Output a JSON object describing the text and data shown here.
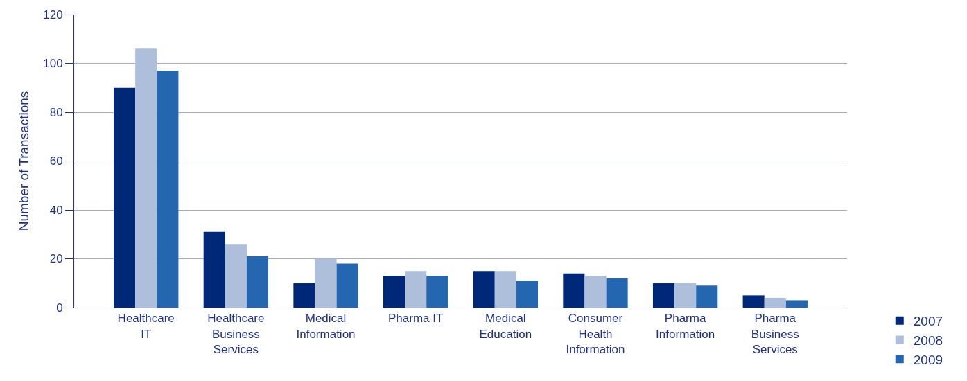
{
  "chart_data": {
    "type": "bar",
    "ylabel": "Number of Transactions",
    "categories": [
      "Healthcare\nIT",
      "Healthcare\nBusiness\nServices",
      "Medical\nInformation",
      "Pharma IT",
      "Medical\nEducation",
      "Consumer\nHealth\nInformation",
      "Pharma\nInformation",
      "Pharma\nBusiness\nServices"
    ],
    "series": [
      {
        "name": "2007",
        "color": "#002878",
        "values": [
          90,
          31,
          10,
          13,
          15,
          14,
          10,
          5
        ]
      },
      {
        "name": "2008",
        "color": "#adbfdb",
        "values": [
          106,
          26,
          20,
          15,
          15,
          13,
          10,
          4
        ]
      },
      {
        "name": "2009",
        "color": "#2467b0",
        "values": [
          97,
          21,
          18,
          13,
          11,
          12,
          9,
          3
        ]
      }
    ],
    "ylim": [
      0,
      120
    ],
    "yticks": [
      0,
      20,
      40,
      60,
      80,
      100,
      120
    ],
    "grid": "y",
    "legend": "bottom right"
  }
}
